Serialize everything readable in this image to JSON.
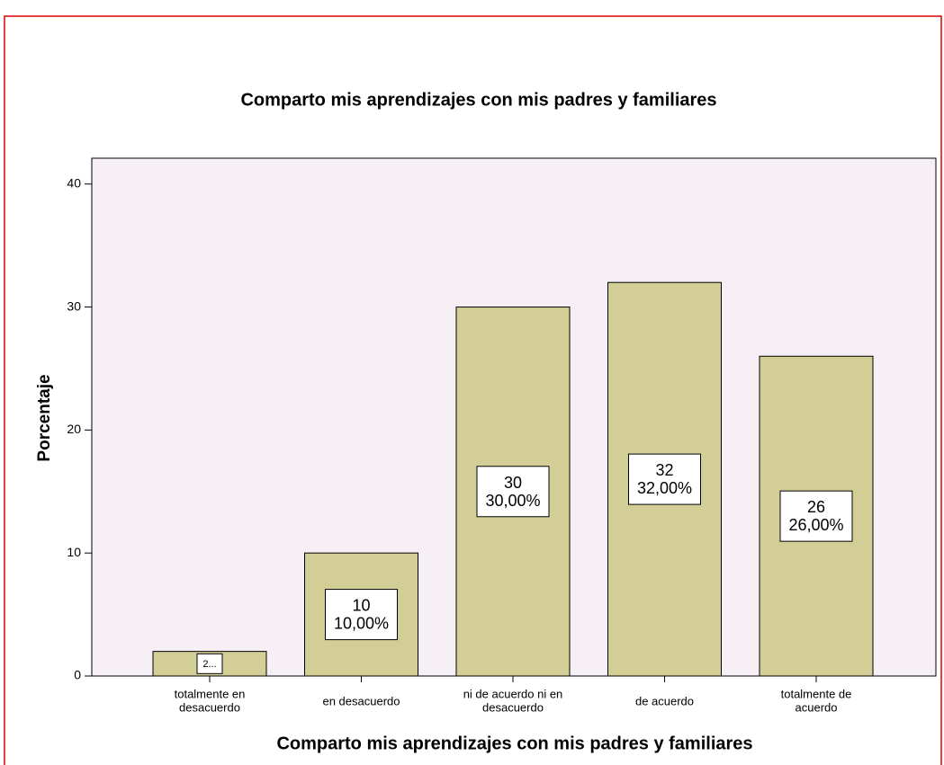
{
  "chart_data": {
    "type": "bar",
    "title": "Comparto mis aprendizajes con mis padres y familiares",
    "x_label": "Comparto mis aprendizajes con mis padres y familiares",
    "y_label": "Porcentaje",
    "categories": [
      "totalmente en\ndesacuerdo",
      "en desacuerdo",
      "ni de acuerdo ni en\ndesacuerdo",
      "de acuerdo",
      "totalmente de\nacuerdo"
    ],
    "values": [
      2,
      10,
      30,
      32,
      26
    ],
    "value_labels": [
      "2...",
      "10\n10,00%",
      "30\n30,00%",
      "32\n32,00%",
      "26\n26,00%"
    ],
    "color": "#d3ce95",
    "ylim": [
      0,
      42.1
    ],
    "yticks": [
      0,
      10,
      20,
      30,
      40
    ]
  }
}
